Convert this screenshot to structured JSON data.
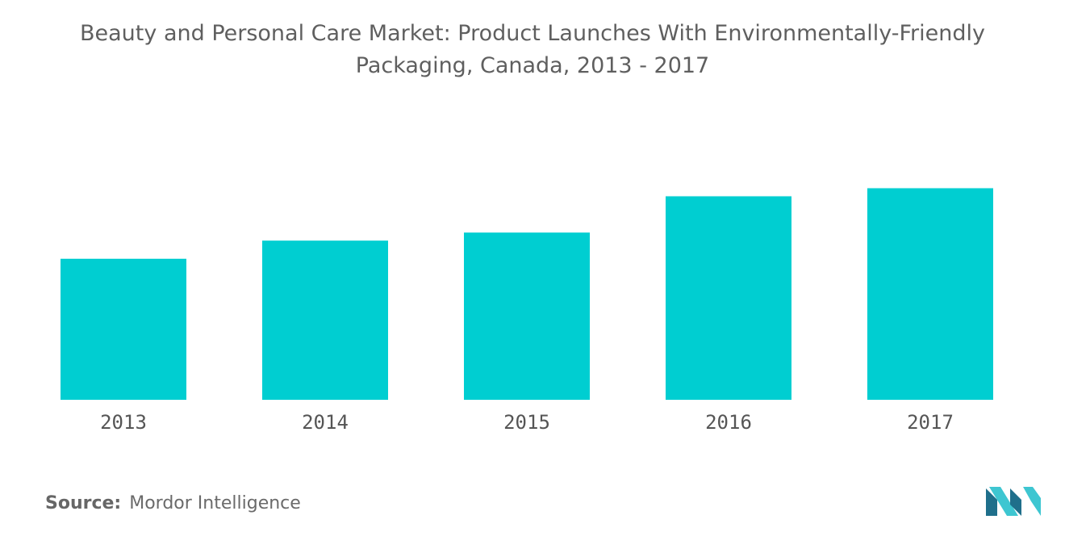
{
  "chart_data": {
    "type": "bar",
    "title_line1": "Beauty and Personal Care Market: Product Launches With Environmentally-Friendly",
    "title_line2": "Packaging, Canada, 2013 - 2017",
    "categories": [
      "2013",
      "2014",
      "2015",
      "2016",
      "2017"
    ],
    "values": [
      35,
      39.5,
      41.5,
      50.5,
      52.5
    ],
    "xlabel": "",
    "ylabel": "",
    "ylim": [
      0,
      60
    ],
    "grid": false,
    "legend": "none",
    "bar_color": "#00ced1"
  },
  "source": {
    "label": "Source:",
    "text": "Mordor Intelligence"
  },
  "logo": {
    "icon": "mordor-intelligence-logo-icon",
    "color_dark": "#1f6f8b",
    "color_light": "#3ec6d1"
  }
}
